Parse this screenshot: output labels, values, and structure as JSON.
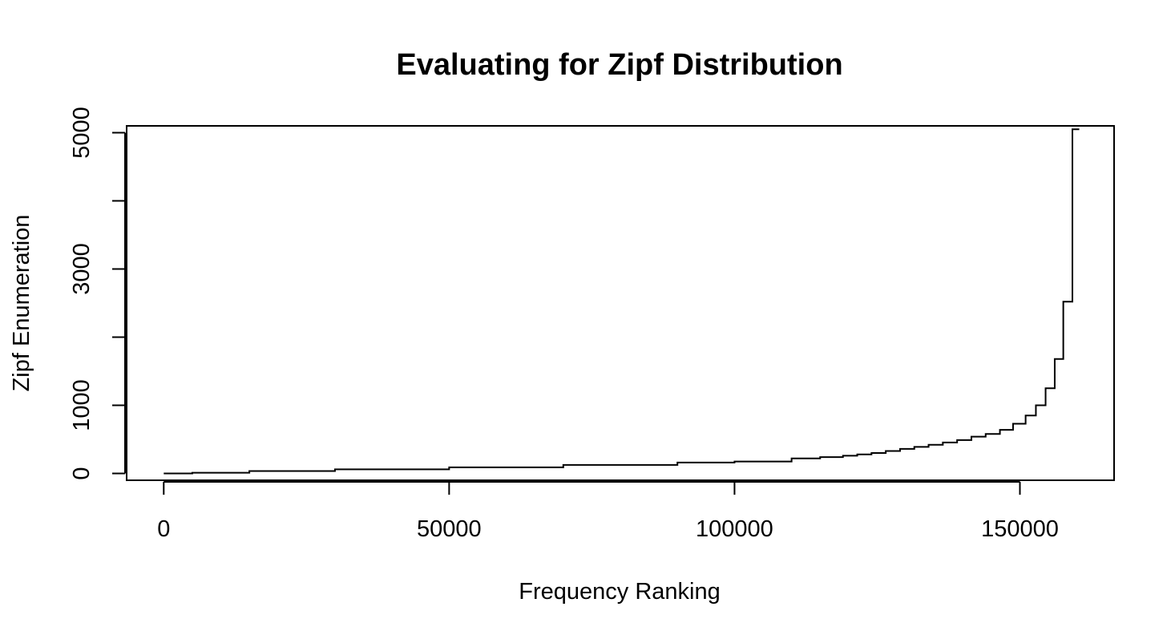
{
  "chart_data": {
    "type": "line",
    "step": true,
    "title": "Evaluating for Zipf Distribution",
    "xlabel": "Frequency Ranking",
    "ylabel": "Zipf Enumeration",
    "xlim": [
      -6500,
      166500
    ],
    "ylim": [
      -100,
      5100
    ],
    "xticks": [
      0,
      50000,
      100000,
      150000
    ],
    "xtick_labels": [
      "0",
      "50000",
      "100000",
      "150000"
    ],
    "yticks": [
      0,
      1000,
      2000,
      3000,
      4000,
      5000
    ],
    "ytick_labels": [
      "0",
      "1000",
      "",
      "3000",
      "",
      "5000"
    ],
    "grid": false,
    "legend": "none",
    "series": [
      {
        "color": "#000000",
        "x": [
          0,
          5000,
          15000,
          30000,
          50000,
          70000,
          90000,
          100000,
          110000,
          115000,
          119000,
          121500,
          124000,
          126500,
          129000,
          131500,
          134000,
          136500,
          139000,
          141500,
          144000,
          146500,
          148800,
          151000,
          152800,
          154500,
          156100,
          157600,
          159200
        ],
        "y": [
          0,
          10,
          35,
          60,
          90,
          125,
          160,
          175,
          220,
          240,
          260,
          280,
          300,
          330,
          360,
          390,
          420,
          455,
          490,
          540,
          580,
          640,
          730,
          850,
          1000,
          1250,
          1680,
          2520,
          5050
        ]
      }
    ]
  }
}
